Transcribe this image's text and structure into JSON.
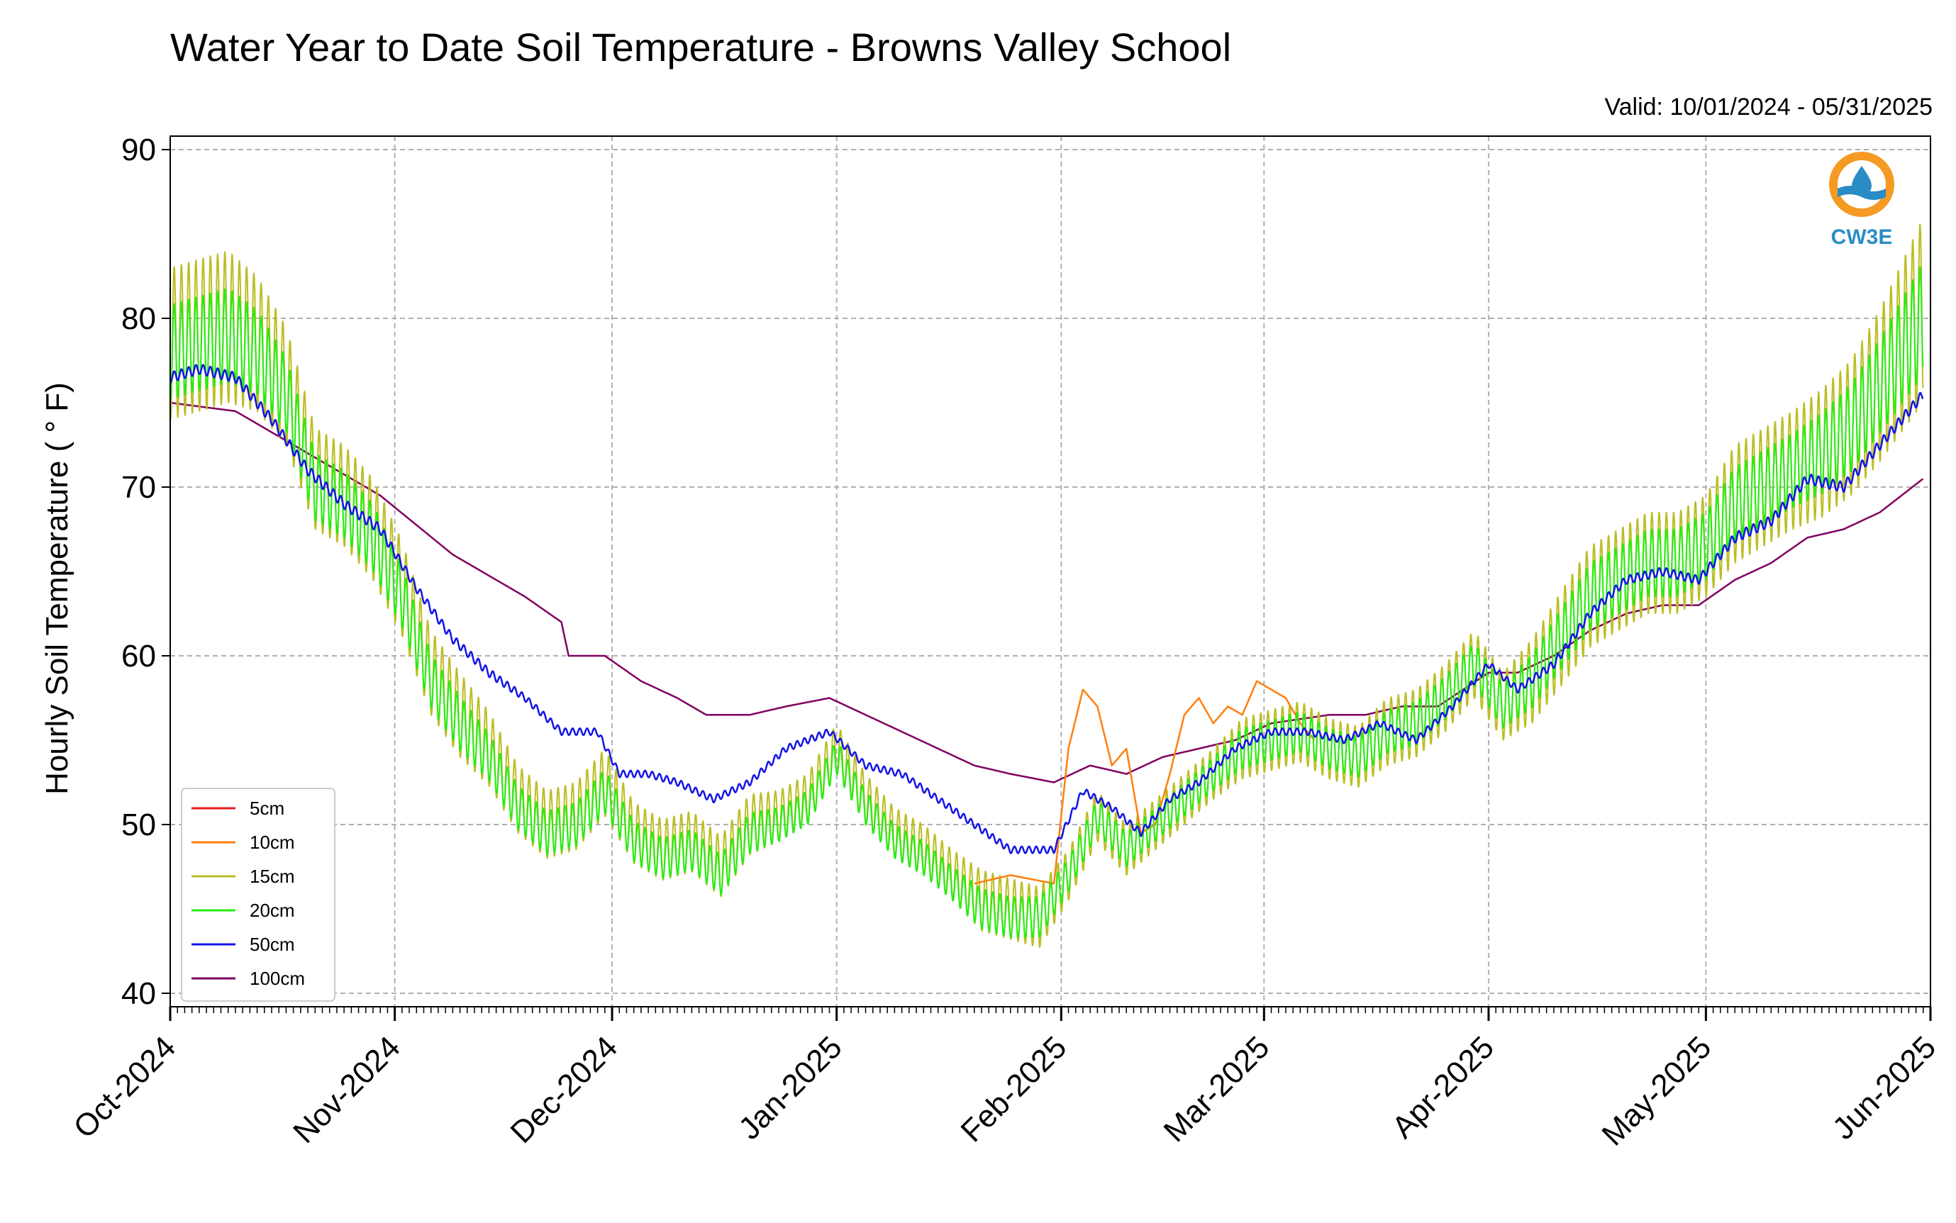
{
  "chart_data": {
    "type": "line",
    "title": "Water Year to Date Soil Temperature - Browns Valley School",
    "subtitle": "Valid: 10/01/2024 - 05/31/2025",
    "ylabel": "Hourly Soil Temperature ( ° F)",
    "xlabel": "",
    "ylim": [
      39.2,
      90.8
    ],
    "yticks": [
      40,
      50,
      60,
      70,
      80,
      90
    ],
    "xlim": [
      "2024-10-01",
      "2025-06-01"
    ],
    "x_tick_labels": [
      {
        "date": "2024-10-01",
        "label": "Oct-2024"
      },
      {
        "date": "2024-11-01",
        "label": "Nov-2024"
      },
      {
        "date": "2024-12-01",
        "label": "Dec-2024"
      },
      {
        "date": "2025-01-01",
        "label": "Jan-2025"
      },
      {
        "date": "2025-02-01",
        "label": "Feb-2025"
      },
      {
        "date": "2025-03-01",
        "label": "Mar-2025"
      },
      {
        "date": "2025-04-01",
        "label": "Apr-2025"
      },
      {
        "date": "2025-05-01",
        "label": "May-2025"
      },
      {
        "date": "2025-06-01",
        "label": "Jun-2025"
      }
    ],
    "grid": true,
    "legend_position": "lower-left",
    "logo_text": "CW3E",
    "series": [
      {
        "name": "5cm",
        "color": "#e41a1c",
        "x": [],
        "y": []
      },
      {
        "name": "10cm",
        "color": "#ff7f0e",
        "x": [
          "2025-01-20",
          "2025-01-25",
          "2025-01-31",
          "2025-02-02",
          "2025-02-04",
          "2025-02-06",
          "2025-02-08",
          "2025-02-10",
          "2025-02-12",
          "2025-02-14",
          "2025-02-16",
          "2025-02-18",
          "2025-02-20",
          "2025-02-22",
          "2025-02-24",
          "2025-02-26",
          "2025-02-28",
          "2025-03-02",
          "2025-03-04",
          "2025-03-06",
          "2025-03-08"
        ],
        "y": [
          46.5,
          47.0,
          46.5,
          54.5,
          58.0,
          57.0,
          53.5,
          54.5,
          49.5,
          50.0,
          53.0,
          56.5,
          57.5,
          56.0,
          57.0,
          56.5,
          58.5,
          58.0,
          57.5,
          56.0,
          55.0
        ],
        "amplitude": [
          0,
          0,
          0,
          0,
          0,
          0,
          0,
          0,
          0,
          0,
          0,
          0,
          0,
          0,
          0,
          0,
          0,
          0,
          0,
          0,
          0
        ]
      },
      {
        "name": "15cm",
        "color": "#bcbd22",
        "x": [
          "2024-10-01",
          "2024-10-05",
          "2024-10-09",
          "2024-10-13",
          "2024-10-17",
          "2024-10-21",
          "2024-10-25",
          "2024-10-29",
          "2024-11-02",
          "2024-11-06",
          "2024-11-10",
          "2024-11-14",
          "2024-11-18",
          "2024-11-22",
          "2024-11-26",
          "2024-11-30",
          "2024-12-04",
          "2024-12-08",
          "2024-12-12",
          "2024-12-16",
          "2024-12-20",
          "2024-12-24",
          "2024-12-28",
          "2025-01-01",
          "2025-01-05",
          "2025-01-09",
          "2025-01-13",
          "2025-01-17",
          "2025-01-21",
          "2025-01-25",
          "2025-01-29",
          "2025-02-02",
          "2025-02-06",
          "2025-02-10",
          "2025-02-14",
          "2025-02-18",
          "2025-02-22",
          "2025-02-26",
          "2025-03-02",
          "2025-03-06",
          "2025-03-10",
          "2025-03-14",
          "2025-03-18",
          "2025-03-22",
          "2025-03-26",
          "2025-03-30",
          "2025-04-03",
          "2025-04-07",
          "2025-04-11",
          "2025-04-15",
          "2025-04-19",
          "2025-04-23",
          "2025-04-27",
          "2025-05-01",
          "2025-05-05",
          "2025-05-09",
          "2025-05-13",
          "2025-05-17",
          "2025-05-21",
          "2025-05-25",
          "2025-05-31"
        ],
        "y": [
          78.5,
          79.0,
          79.5,
          78.5,
          76.0,
          70.5,
          69.5,
          67.5,
          64.0,
          59.0,
          56.5,
          54.5,
          51.5,
          50.0,
          50.5,
          52.5,
          49.5,
          48.5,
          49.0,
          47.5,
          50.0,
          50.5,
          51.5,
          54.5,
          51.5,
          49.5,
          48.5,
          47.0,
          45.5,
          45.0,
          44.5,
          47.0,
          50.5,
          48.5,
          50.0,
          51.5,
          53.0,
          54.5,
          55.0,
          55.5,
          54.5,
          54.0,
          55.5,
          56.0,
          57.5,
          59.5,
          57.0,
          58.5,
          61.0,
          63.5,
          64.5,
          65.5,
          65.5,
          66.5,
          69.0,
          70.0,
          71.0,
          72.0,
          73.5,
          76.0,
          80.5
        ],
        "amplitude": [
          4.5,
          4.5,
          4.5,
          4.0,
          3.5,
          3.0,
          3.0,
          3.0,
          2.8,
          2.5,
          2.5,
          2.2,
          2.0,
          2.0,
          2.0,
          2.0,
          1.8,
          1.8,
          1.8,
          1.8,
          1.8,
          1.5,
          1.5,
          1.5,
          1.5,
          1.5,
          1.5,
          1.5,
          1.8,
          1.8,
          1.8,
          1.5,
          1.5,
          1.5,
          1.5,
          1.5,
          1.5,
          1.8,
          1.8,
          1.8,
          1.8,
          1.8,
          2.0,
          2.0,
          2.0,
          2.0,
          2.0,
          2.5,
          2.8,
          3.0,
          3.0,
          3.0,
          3.0,
          3.0,
          3.5,
          3.5,
          3.5,
          3.8,
          4.0,
          4.5,
          5.5
        ]
      },
      {
        "name": "20cm",
        "color": "#22ee11",
        "x": [
          "2024-10-01",
          "2024-10-05",
          "2024-10-09",
          "2024-10-13",
          "2024-10-17",
          "2024-10-21",
          "2024-10-25",
          "2024-10-29",
          "2024-11-02",
          "2024-11-06",
          "2024-11-10",
          "2024-11-14",
          "2024-11-18",
          "2024-11-22",
          "2024-11-26",
          "2024-11-30",
          "2024-12-04",
          "2024-12-08",
          "2024-12-12",
          "2024-12-16",
          "2024-12-20",
          "2024-12-24",
          "2024-12-28",
          "2025-01-01",
          "2025-01-05",
          "2025-01-09",
          "2025-01-13",
          "2025-01-17",
          "2025-01-21",
          "2025-01-25",
          "2025-01-29",
          "2025-02-02",
          "2025-02-06",
          "2025-02-10",
          "2025-02-14",
          "2025-02-18",
          "2025-02-22",
          "2025-02-26",
          "2025-03-02",
          "2025-03-06",
          "2025-03-10",
          "2025-03-14",
          "2025-03-18",
          "2025-03-22",
          "2025-03-26",
          "2025-03-30",
          "2025-04-03",
          "2025-04-07",
          "2025-04-11",
          "2025-04-15",
          "2025-04-19",
          "2025-04-23",
          "2025-04-27",
          "2025-05-01",
          "2025-05-05",
          "2025-05-09",
          "2025-05-13",
          "2025-05-17",
          "2025-05-21",
          "2025-05-25",
          "2025-05-31"
        ],
        "y": [
          78.0,
          78.5,
          79.0,
          78.0,
          75.5,
          70.0,
          69.0,
          67.0,
          63.5,
          58.5,
          56.0,
          54.0,
          51.0,
          49.5,
          50.0,
          52.0,
          49.0,
          48.0,
          48.5,
          47.0,
          49.5,
          50.0,
          51.0,
          54.0,
          51.0,
          49.0,
          48.0,
          46.5,
          45.0,
          44.5,
          44.5,
          47.0,
          50.5,
          48.5,
          50.0,
          51.5,
          53.0,
          54.5,
          55.0,
          55.5,
          54.5,
          54.0,
          55.5,
          56.0,
          57.5,
          59.5,
          57.0,
          58.5,
          61.0,
          63.5,
          64.5,
          65.5,
          65.5,
          66.5,
          69.0,
          70.0,
          71.0,
          72.0,
          73.5,
          76.0,
          80.0
        ],
        "amplitude": [
          2.8,
          2.8,
          2.8,
          2.5,
          2.2,
          2.0,
          2.0,
          2.0,
          1.8,
          1.6,
          1.6,
          1.4,
          1.3,
          1.3,
          1.3,
          1.3,
          1.2,
          1.2,
          1.2,
          1.2,
          1.2,
          1.0,
          1.0,
          1.0,
          1.0,
          1.0,
          1.0,
          1.0,
          1.2,
          1.2,
          1.2,
          1.0,
          1.0,
          1.0,
          1.0,
          1.0,
          1.0,
          1.2,
          1.2,
          1.2,
          1.2,
          1.2,
          1.3,
          1.3,
          1.3,
          1.3,
          1.3,
          1.6,
          1.8,
          2.0,
          2.0,
          2.0,
          2.0,
          2.0,
          2.2,
          2.2,
          2.2,
          2.4,
          2.6,
          2.8,
          3.4
        ]
      },
      {
        "name": "50cm",
        "color": "#1414e6",
        "x": [
          "2024-10-01",
          "2024-10-05",
          "2024-10-10",
          "2024-10-15",
          "2024-10-20",
          "2024-10-25",
          "2024-10-30",
          "2024-11-04",
          "2024-11-09",
          "2024-11-14",
          "2024-11-19",
          "2024-11-24",
          "2024-11-29",
          "2024-12-02",
          "2024-12-06",
          "2024-12-10",
          "2024-12-15",
          "2024-12-20",
          "2024-12-25",
          "2024-12-31",
          "2025-01-05",
          "2025-01-10",
          "2025-01-15",
          "2025-01-20",
          "2025-01-25",
          "2025-01-31",
          "2025-02-04",
          "2025-02-08",
          "2025-02-12",
          "2025-02-16",
          "2025-02-20",
          "2025-02-25",
          "2025-03-02",
          "2025-03-07",
          "2025-03-12",
          "2025-03-17",
          "2025-03-22",
          "2025-03-27",
          "2025-04-01",
          "2025-04-05",
          "2025-04-10",
          "2025-04-15",
          "2025-04-20",
          "2025-04-25",
          "2025-04-30",
          "2025-05-05",
          "2025-05-10",
          "2025-05-15",
          "2025-05-20",
          "2025-05-25",
          "2025-05-31"
        ],
        "y": [
          76.5,
          77.0,
          76.5,
          74.0,
          71.0,
          69.0,
          67.5,
          64.0,
          61.0,
          59.0,
          57.5,
          55.5,
          55.5,
          53.0,
          53.0,
          52.5,
          51.5,
          52.5,
          54.5,
          55.5,
          53.5,
          53.0,
          51.5,
          50.0,
          48.5,
          48.5,
          52.0,
          51.0,
          49.5,
          51.5,
          52.5,
          54.5,
          55.5,
          55.5,
          55.0,
          56.0,
          55.0,
          57.0,
          59.5,
          58.0,
          59.5,
          62.5,
          64.5,
          65.0,
          64.5,
          67.0,
          68.0,
          70.5,
          70.0,
          72.5,
          75.5
        ],
        "amplitude": [
          0.3,
          0.3,
          0.3,
          0.3,
          0.3,
          0.3,
          0.3,
          0.25,
          0.25,
          0.25,
          0.2,
          0.2,
          0.2,
          0.2,
          0.2,
          0.2,
          0.2,
          0.2,
          0.2,
          0.2,
          0.2,
          0.2,
          0.2,
          0.2,
          0.2,
          0.2,
          0.2,
          0.2,
          0.2,
          0.2,
          0.2,
          0.2,
          0.2,
          0.2,
          0.2,
          0.2,
          0.2,
          0.2,
          0.2,
          0.2,
          0.25,
          0.25,
          0.25,
          0.25,
          0.25,
          0.3,
          0.3,
          0.3,
          0.3,
          0.3,
          0.3
        ]
      },
      {
        "name": "100cm",
        "color": "#800060",
        "x": [
          "2024-10-01",
          "2024-10-10",
          "2024-10-20",
          "2024-10-30",
          "2024-11-09",
          "2024-11-19",
          "2024-11-24",
          "2024-11-25",
          "2024-11-30",
          "2024-12-05",
          "2024-12-10",
          "2024-12-14",
          "2024-12-20",
          "2024-12-25",
          "2024-12-31",
          "2025-01-05",
          "2025-01-10",
          "2025-01-15",
          "2025-01-20",
          "2025-01-25",
          "2025-01-31",
          "2025-02-05",
          "2025-02-10",
          "2025-02-15",
          "2025-02-20",
          "2025-02-25",
          "2025-03-02",
          "2025-03-10",
          "2025-03-15",
          "2025-03-20",
          "2025-03-25",
          "2025-04-01",
          "2025-04-05",
          "2025-04-10",
          "2025-04-15",
          "2025-04-20",
          "2025-04-25",
          "2025-04-30",
          "2025-05-05",
          "2025-05-10",
          "2025-05-15",
          "2025-05-20",
          "2025-05-25",
          "2025-05-31"
        ],
        "y": [
          75.0,
          74.5,
          72.0,
          69.5,
          66.0,
          63.5,
          62.0,
          60.0,
          60.0,
          58.5,
          57.5,
          56.5,
          56.5,
          57.0,
          57.5,
          56.5,
          55.5,
          54.5,
          53.5,
          53.0,
          52.5,
          53.5,
          53.0,
          54.0,
          54.5,
          55.0,
          56.0,
          56.5,
          56.5,
          57.0,
          57.0,
          59.0,
          59.0,
          60.0,
          61.5,
          62.5,
          63.0,
          63.0,
          64.5,
          65.5,
          67.0,
          67.5,
          68.5,
          70.5
        ],
        "amplitude": [
          0,
          0,
          0,
          0,
          0,
          0,
          0,
          0,
          0,
          0,
          0,
          0,
          0,
          0,
          0,
          0,
          0,
          0,
          0,
          0,
          0,
          0,
          0,
          0,
          0,
          0,
          0,
          0,
          0,
          0,
          0,
          0,
          0,
          0,
          0,
          0,
          0,
          0,
          0,
          0,
          0,
          0,
          0,
          0
        ]
      }
    ]
  }
}
